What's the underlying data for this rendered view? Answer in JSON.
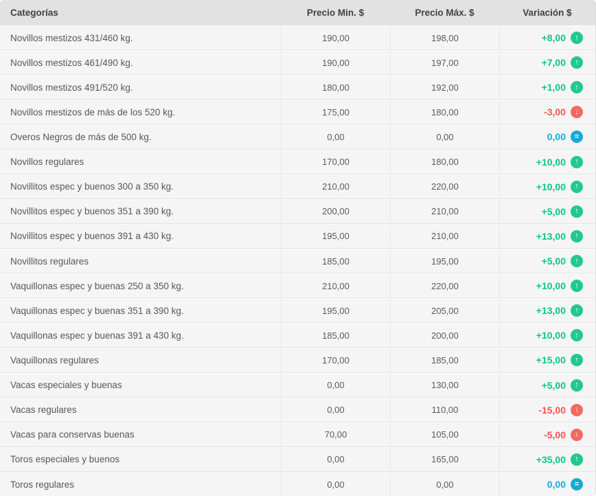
{
  "table": {
    "columns": [
      {
        "key": "category",
        "label": "Categorías"
      },
      {
        "key": "min",
        "label": "Precio Min. $"
      },
      {
        "key": "max",
        "label": "Precio Máx. $"
      },
      {
        "key": "variation",
        "label": "Variación $"
      }
    ],
    "rows": [
      {
        "category": "Novillos mestizos 431/460 kg.",
        "min": "190,00",
        "max": "198,00",
        "variation": "+8,00",
        "direction": "up"
      },
      {
        "category": "Novillos mestizos 461/490 kg.",
        "min": "190,00",
        "max": "197,00",
        "variation": "+7,00",
        "direction": "up"
      },
      {
        "category": "Novillos mestizos 491/520 kg.",
        "min": "180,00",
        "max": "192,00",
        "variation": "+1,00",
        "direction": "up"
      },
      {
        "category": "Novillos mestizos de más de los 520 kg.",
        "min": "175,00",
        "max": "180,00",
        "variation": "-3,00",
        "direction": "down"
      },
      {
        "category": "Overos Negros de más de 500 kg.",
        "min": "0,00",
        "max": "0,00",
        "variation": "0,00",
        "direction": "equal"
      },
      {
        "category": "Novillos regulares",
        "min": "170,00",
        "max": "180,00",
        "variation": "+10,00",
        "direction": "up"
      },
      {
        "category": "Novillitos espec y buenos 300 a 350 kg.",
        "min": "210,00",
        "max": "220,00",
        "variation": "+10,00",
        "direction": "up"
      },
      {
        "category": "Novillitos espec y buenos 351 a 390 kg.",
        "min": "200,00",
        "max": "210,00",
        "variation": "+5,00",
        "direction": "up"
      },
      {
        "category": "Novillitos espec y buenos 391 a 430 kg.",
        "min": "195,00",
        "max": "210,00",
        "variation": "+13,00",
        "direction": "up"
      },
      {
        "category": "Novillitos regulares",
        "min": "185,00",
        "max": "195,00",
        "variation": "+5,00",
        "direction": "up"
      },
      {
        "category": "Vaquillonas espec y buenas 250 a 350 kg.",
        "min": "210,00",
        "max": "220,00",
        "variation": "+10,00",
        "direction": "up"
      },
      {
        "category": "Vaquillonas espec y buenas 351 a 390 kg.",
        "min": "195,00",
        "max": "205,00",
        "variation": "+13,00",
        "direction": "up"
      },
      {
        "category": "Vaquillonas espec y buenas 391 a 430 kg.",
        "min": "185,00",
        "max": "200,00",
        "variation": "+10,00",
        "direction": "up"
      },
      {
        "category": "Vaquillonas regulares",
        "min": "170,00",
        "max": "185,00",
        "variation": "+15,00",
        "direction": "up"
      },
      {
        "category": "Vacas especiales y buenas",
        "min": "0,00",
        "max": "130,00",
        "variation": "+5,00",
        "direction": "up"
      },
      {
        "category": "Vacas regulares",
        "min": "0,00",
        "max": "110,00",
        "variation": "-15,00",
        "direction": "down"
      },
      {
        "category": "Vacas para conservas buenas",
        "min": "70,00",
        "max": "105,00",
        "variation": "-5,00",
        "direction": "down"
      },
      {
        "category": "Toros especiales y buenos",
        "min": "0,00",
        "max": "165,00",
        "variation": "+35,00",
        "direction": "up"
      },
      {
        "category": "Toros regulares",
        "min": "0,00",
        "max": "0,00",
        "variation": "0,00",
        "direction": "equal"
      }
    ]
  },
  "icons": {
    "up": {
      "name": "arrow-up-circle-icon",
      "glyph": "↑"
    },
    "down": {
      "name": "arrow-down-circle-icon",
      "glyph": "↓"
    },
    "equal": {
      "name": "equal-circle-icon",
      "glyph": "="
    }
  },
  "colors": {
    "up_text": "#0cc786",
    "up_circle": "#22c98d",
    "down_text": "#f4564b",
    "down_circle": "#f26a60",
    "equal_text": "#0fb0dc",
    "equal_circle": "#16abd6"
  }
}
